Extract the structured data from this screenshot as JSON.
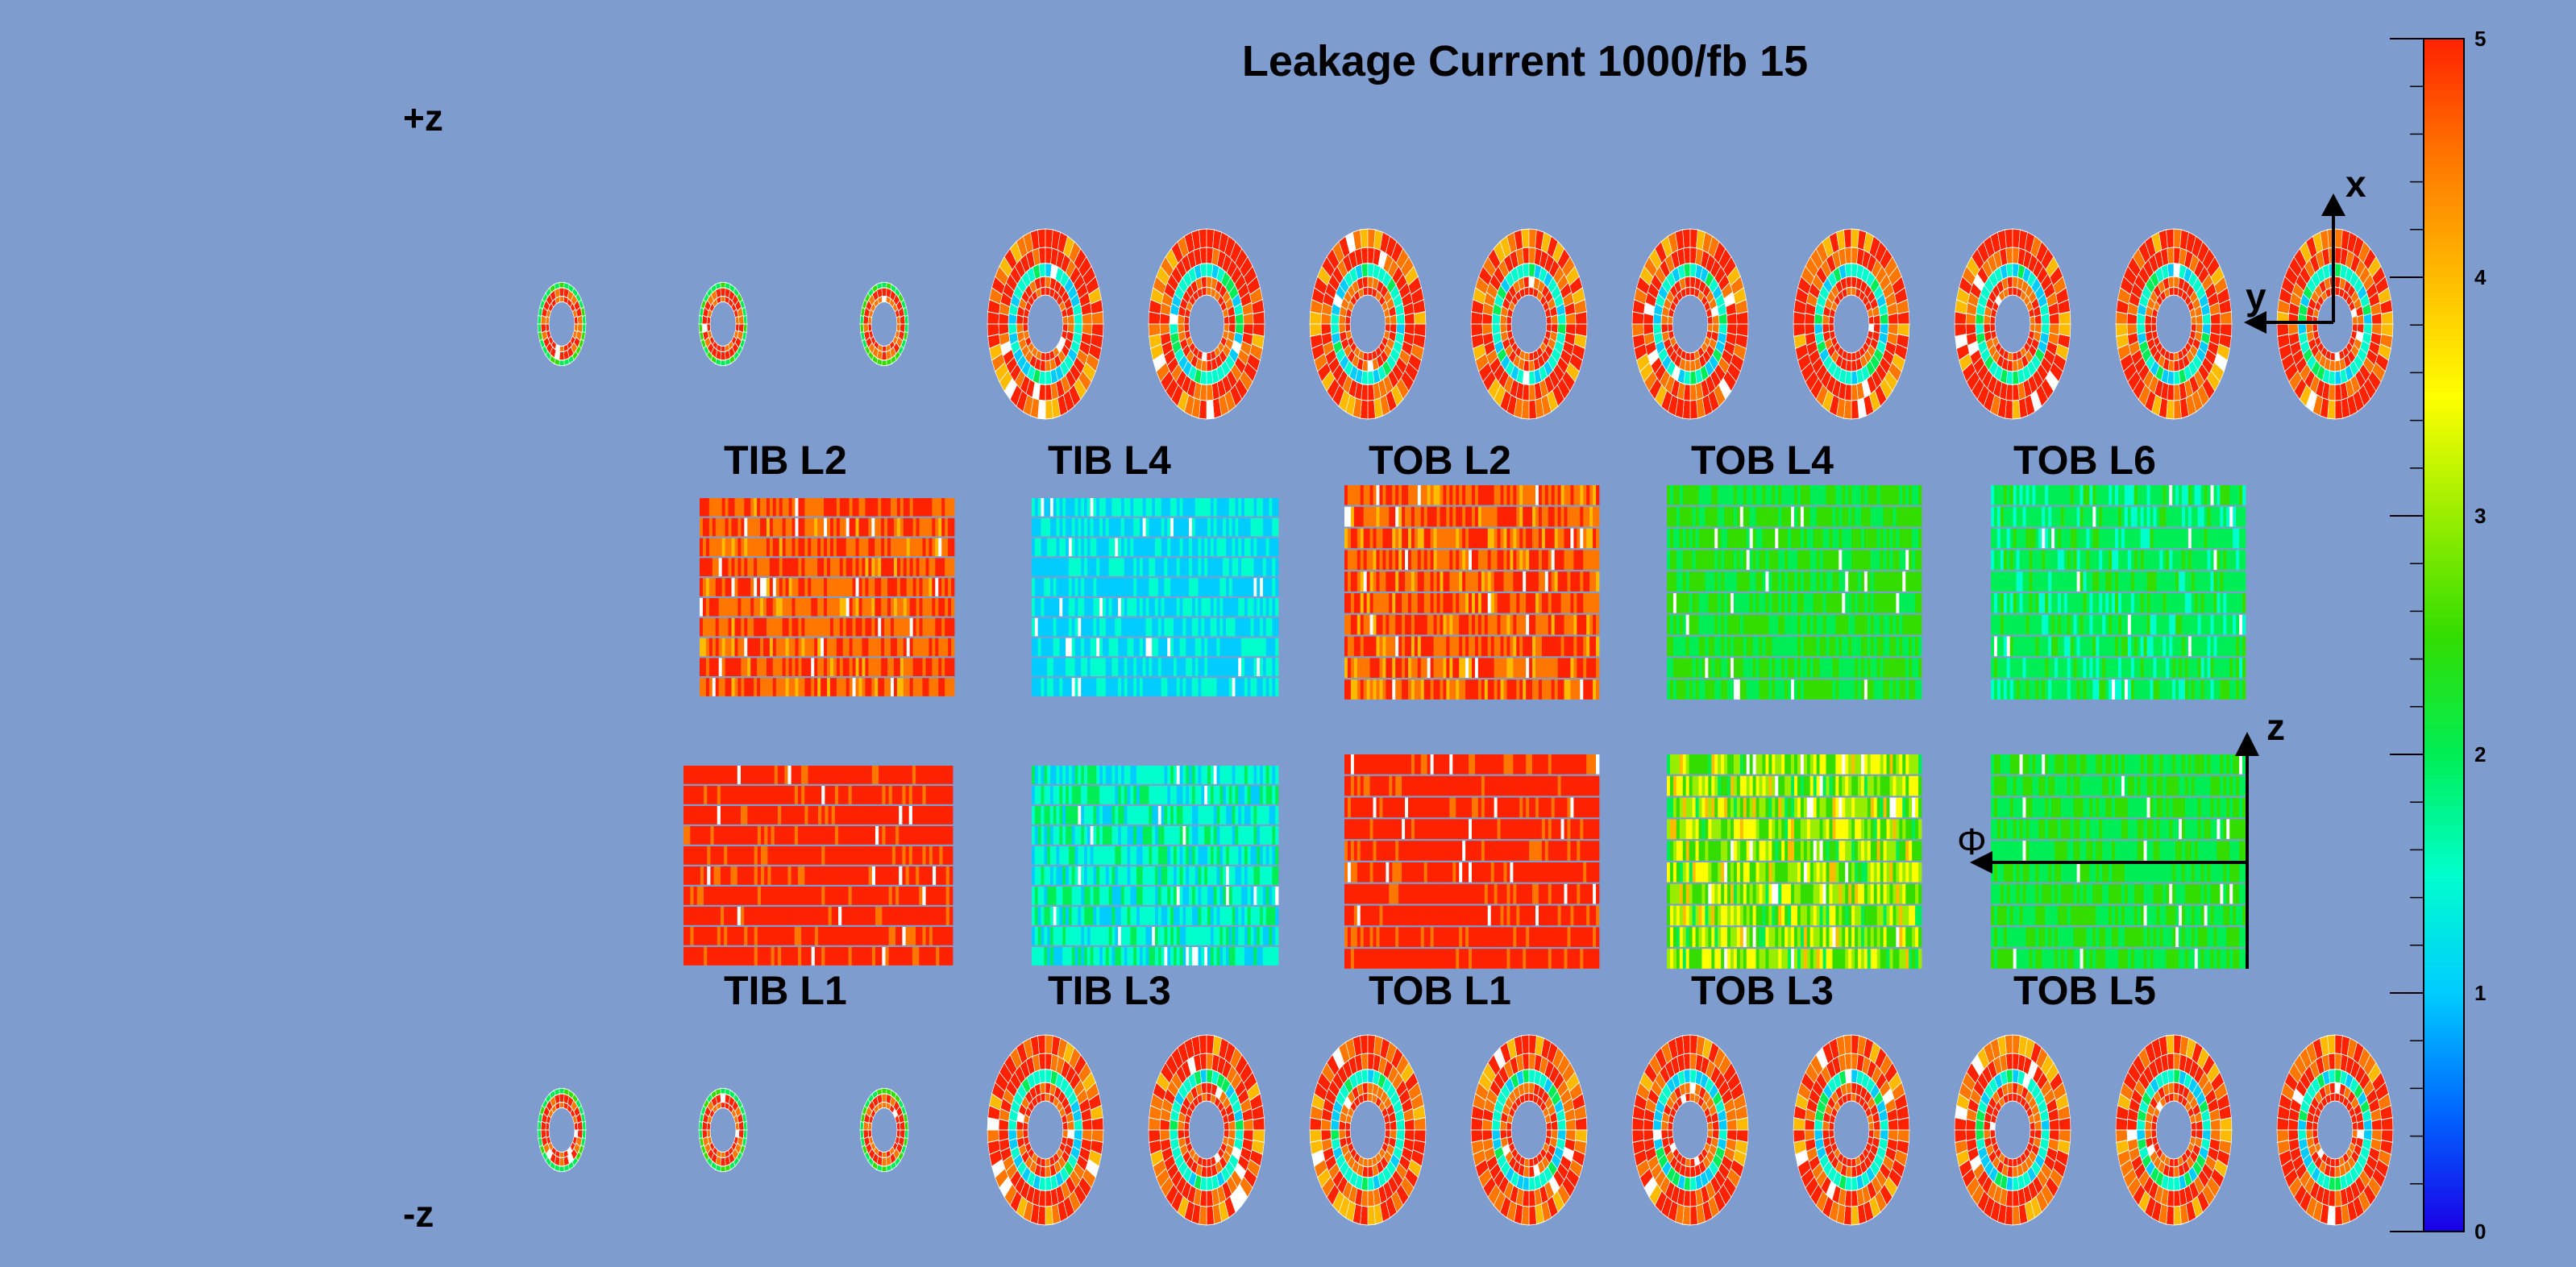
{
  "chart_data": {
    "type": "heatmap",
    "title": "Leakage Current 1000/fb 15",
    "colorbar": {
      "min": 0,
      "max": 5,
      "ticks": [
        "0",
        "1",
        "2",
        "3",
        "4",
        "5"
      ],
      "palette": [
        "#1a00e6",
        "#0066ff",
        "#00ccff",
        "#00ffcc",
        "#00ee55",
        "#33dd00",
        "#99ee00",
        "#ffff00",
        "#ffbb00",
        "#ff7700",
        "#ff2200"
      ]
    },
    "side_labels": {
      "plus_z": "+z",
      "minus_z": "-z"
    },
    "axes": {
      "disk_x": "x",
      "disk_y": "y",
      "barrel_z": "z",
      "barrel_phi": "Φ"
    },
    "barrel_layers": [
      {
        "name": "TIB L2",
        "side": "top",
        "mean": 4.7,
        "spread": 0.5,
        "rows": 10,
        "cols": 80
      },
      {
        "name": "TIB L4",
        "side": "top",
        "mean": 1.2,
        "spread": 0.35,
        "rows": 10,
        "cols": 80
      },
      {
        "name": "TOB L2",
        "side": "top",
        "mean": 4.7,
        "spread": 0.6,
        "rows": 10,
        "cols": 80
      },
      {
        "name": "TOB L4",
        "side": "top",
        "mean": 2.3,
        "spread": 0.4,
        "rows": 10,
        "cols": 80
      },
      {
        "name": "TOB L6",
        "side": "top",
        "mean": 2.0,
        "spread": 0.4,
        "rows": 10,
        "cols": 80
      },
      {
        "name": "TIB L1",
        "side": "bottom",
        "mean": 4.9,
        "spread": 0.2,
        "rows": 10,
        "cols": 80
      },
      {
        "name": "TIB L3",
        "side": "bottom",
        "mean": 1.5,
        "spread": 0.5,
        "rows": 10,
        "cols": 80
      },
      {
        "name": "TOB L1",
        "side": "bottom",
        "mean": 4.9,
        "spread": 0.2,
        "rows": 10,
        "cols": 80
      },
      {
        "name": "TOB L3",
        "side": "bottom",
        "mean": 3.0,
        "spread": 0.9,
        "rows": 10,
        "cols": 80
      },
      {
        "name": "TOB L5",
        "side": "bottom",
        "mean": 2.2,
        "spread": 0.4,
        "rows": 10,
        "cols": 80
      }
    ],
    "disks_plus_z": {
      "small": 3,
      "large": 9
    },
    "disks_minus_z": {
      "small": 3,
      "large": 9
    }
  }
}
